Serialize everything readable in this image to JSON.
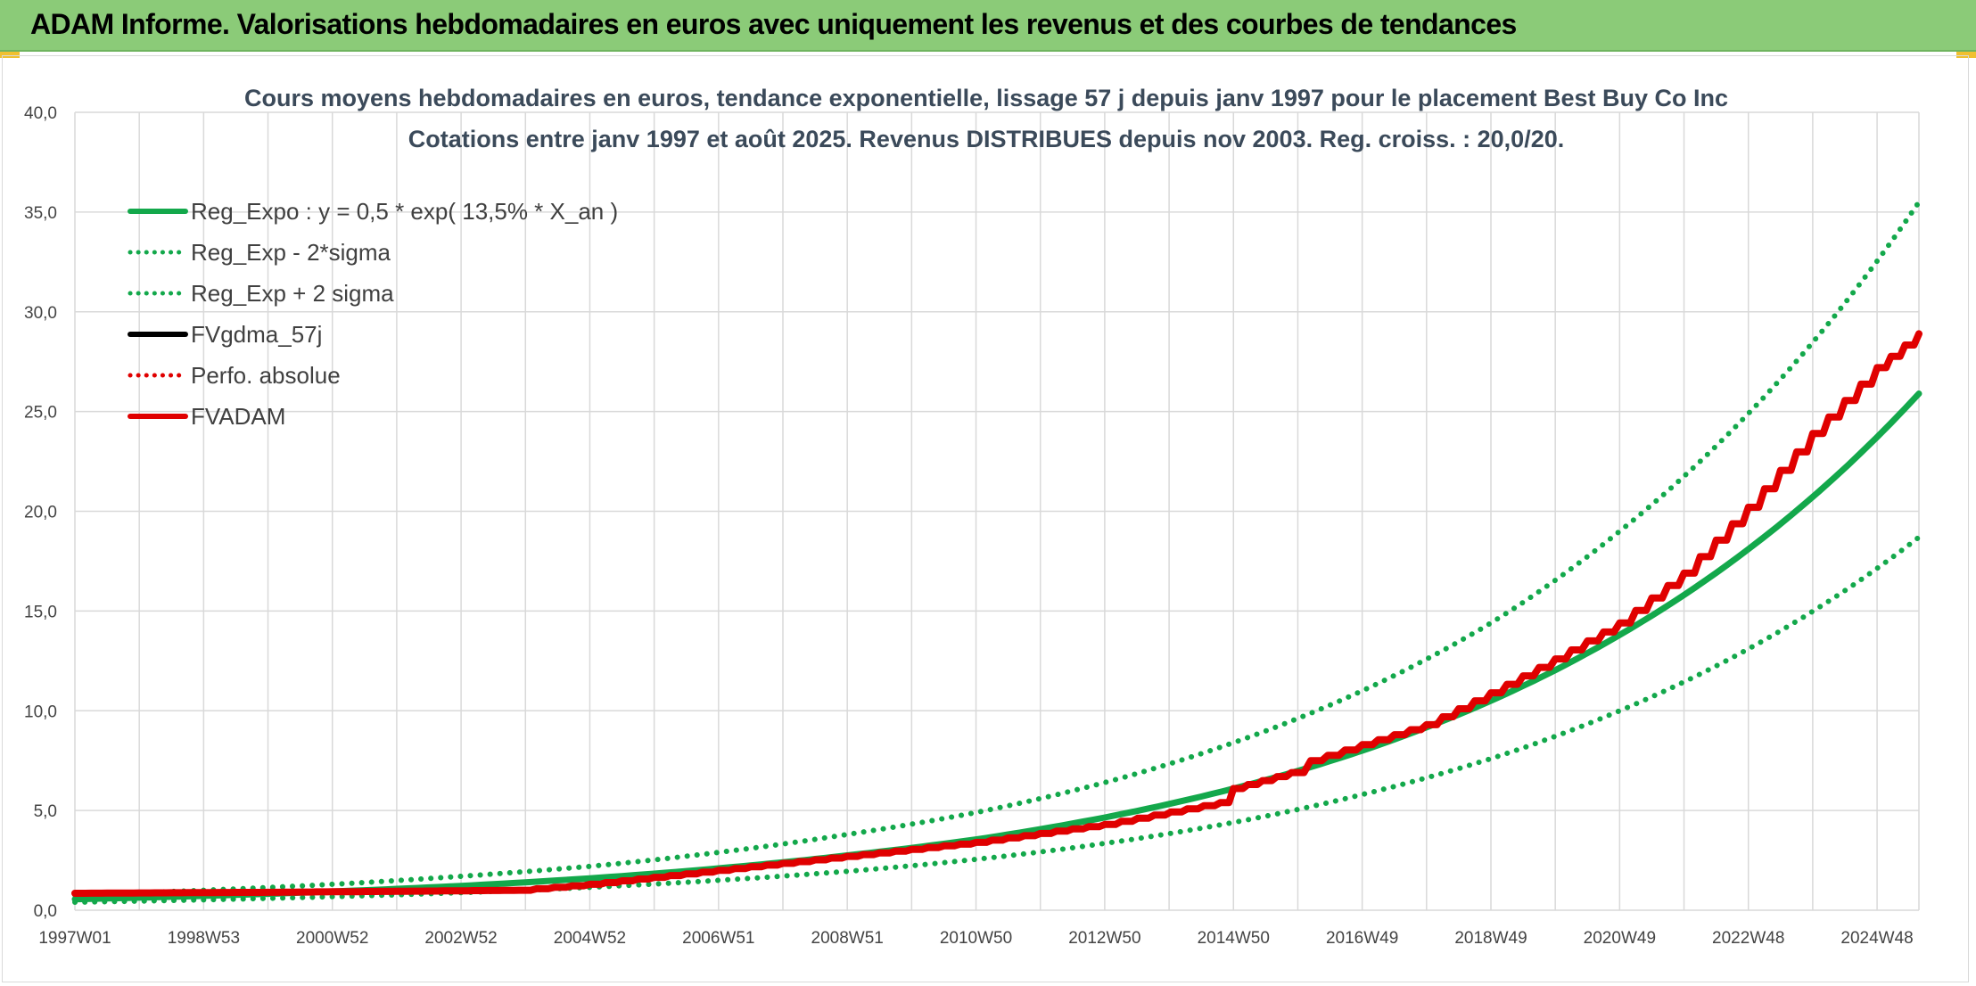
{
  "header": {
    "title": "ADAM Informe. Valorisations hebdomadaires en euros avec uniquement les revenus et des courbes de tendances"
  },
  "colors": {
    "header_bg": "#8bcb78",
    "reg_green": "#13a84b",
    "fvadam_red": "#e00000",
    "fvgdma_black": "#000000",
    "grid": "#d9d9d9"
  },
  "chart_data": {
    "type": "line",
    "title": "Cours moyens hebdomadaires en euros, tendance exponentielle, lissage 57 j depuis janv 1997 pour le placement Best Buy Co Inc",
    "subtitle": "Cotations entre janv 1997 et août 2025. Revenus DISTRIBUES depuis nov 2003. Reg. croiss. : 20,0/20.",
    "xlabel": "",
    "ylabel": "",
    "ylim": [
      0,
      40
    ],
    "xlim": [
      1997.0,
      2025.65
    ],
    "y_ticks": [
      "0,0",
      "5,0",
      "10,0",
      "15,0",
      "20,0",
      "25,0",
      "30,0",
      "35,0",
      "40,0"
    ],
    "x_ticks": [
      {
        "label": "1997W01",
        "x": 1997.0
      },
      {
        "label": "1998W53",
        "x": 1999.0
      },
      {
        "label": "2000W52",
        "x": 2001.0
      },
      {
        "label": "2002W52",
        "x": 2003.0
      },
      {
        "label": "2004W52",
        "x": 2005.0
      },
      {
        "label": "2006W51",
        "x": 2007.0
      },
      {
        "label": "2008W51",
        "x": 2009.0
      },
      {
        "label": "2010W50",
        "x": 2011.0
      },
      {
        "label": "2012W50",
        "x": 2013.0
      },
      {
        "label": "2014W50",
        "x": 2015.0
      },
      {
        "label": "2016W49",
        "x": 2017.0
      },
      {
        "label": "2018W49",
        "x": 2019.0
      },
      {
        "label": "2020W49",
        "x": 2021.0
      },
      {
        "label": "2022W48",
        "x": 2023.0
      },
      {
        "label": "2024W48",
        "x": 2025.0
      }
    ],
    "grid": true,
    "legend_position": "top-left",
    "series": [
      {
        "name": "Reg_Expo : y = 0,5 * exp( 13,5% *  X_an )",
        "style": "solid",
        "color": "#13a84b",
        "x": [
          1997.0,
          1999.0,
          2001.0,
          2003.0,
          2005.0,
          2007.0,
          2009.0,
          2011.0,
          2013.0,
          2015.0,
          2017.0,
          2019.0,
          2021.0,
          2023.0,
          2025.65
        ],
        "y": [
          0.55,
          0.72,
          0.94,
          1.22,
          1.6,
          2.1,
          2.75,
          3.55,
          4.65,
          6.1,
          8.0,
          10.5,
          13.8,
          18.1,
          25.9
        ]
      },
      {
        "name": "Reg_Exp - 2*sigma",
        "style": "dotted",
        "color": "#13a84b",
        "x": [
          1997.0,
          1999.0,
          2001.0,
          2003.0,
          2005.0,
          2007.0,
          2009.0,
          2011.0,
          2013.0,
          2015.0,
          2017.0,
          2019.0,
          2021.0,
          2023.0,
          2025.65
        ],
        "y": [
          0.4,
          0.52,
          0.68,
          0.88,
          1.15,
          1.5,
          1.95,
          2.55,
          3.35,
          4.4,
          5.8,
          7.6,
          10.0,
          13.1,
          18.7
        ]
      },
      {
        "name": "Reg_Exp + 2 sigma",
        "style": "dotted",
        "color": "#13a84b",
        "x": [
          1997.0,
          1999.0,
          2001.0,
          2003.0,
          2005.0,
          2007.0,
          2009.0,
          2011.0,
          2013.0,
          2015.0,
          2017.0,
          2019.0,
          2021.0,
          2023.0,
          2025.65
        ],
        "y": [
          0.77,
          1.0,
          1.3,
          1.7,
          2.2,
          2.9,
          3.8,
          4.9,
          6.4,
          8.4,
          11.0,
          14.4,
          19.0,
          24.9,
          35.5
        ]
      },
      {
        "name": "FVgdma_57j",
        "style": "solid",
        "color": "#000000",
        "x": [
          1997.0,
          2000.0,
          2002.0,
          2003.9,
          2005.0,
          2007.0,
          2009.0,
          2011.0,
          2013.0,
          2014.8,
          2015.0,
          2015.9,
          2016.2,
          2017.0,
          2018.0,
          2019.0,
          2020.0,
          2021.0,
          2022.0,
          2023.0,
          2024.0,
          2025.0,
          2025.65
        ],
        "y": [
          0.85,
          0.9,
          0.95,
          1.0,
          1.3,
          2.0,
          2.7,
          3.4,
          4.3,
          5.4,
          6.1,
          6.9,
          7.5,
          8.3,
          9.3,
          10.9,
          12.6,
          14.4,
          16.9,
          20.2,
          23.9,
          27.2,
          28.9
        ]
      },
      {
        "name": "Perfo. absolue",
        "style": "dotted",
        "color": "#e00000",
        "x": [
          1997.0,
          2000.0,
          2002.0,
          2003.9,
          2005.0,
          2007.0,
          2009.0,
          2011.0,
          2013.0,
          2014.8,
          2015.0,
          2015.9,
          2016.2,
          2017.0,
          2018.0,
          2019.0,
          2020.0,
          2021.0,
          2022.0,
          2023.0,
          2024.0,
          2025.0,
          2025.65
        ],
        "y": [
          0.85,
          0.9,
          0.95,
          1.0,
          1.3,
          2.0,
          2.7,
          3.4,
          4.3,
          5.4,
          6.1,
          6.9,
          7.5,
          8.3,
          9.3,
          10.9,
          12.6,
          14.4,
          16.9,
          20.2,
          23.9,
          27.2,
          28.9
        ]
      },
      {
        "name": "FVADAM",
        "style": "solid",
        "color": "#e00000",
        "x": [
          1997.0,
          2000.0,
          2002.0,
          2003.9,
          2005.0,
          2007.0,
          2009.0,
          2011.0,
          2013.0,
          2014.8,
          2015.0,
          2015.9,
          2016.2,
          2017.0,
          2018.0,
          2019.0,
          2020.0,
          2021.0,
          2022.0,
          2023.0,
          2024.0,
          2025.0,
          2025.65
        ],
        "y": [
          0.85,
          0.9,
          0.95,
          1.0,
          1.3,
          2.0,
          2.7,
          3.4,
          4.3,
          5.4,
          6.1,
          6.9,
          7.5,
          8.3,
          9.3,
          10.9,
          12.6,
          14.4,
          16.9,
          20.2,
          23.9,
          27.2,
          28.9
        ]
      }
    ]
  }
}
